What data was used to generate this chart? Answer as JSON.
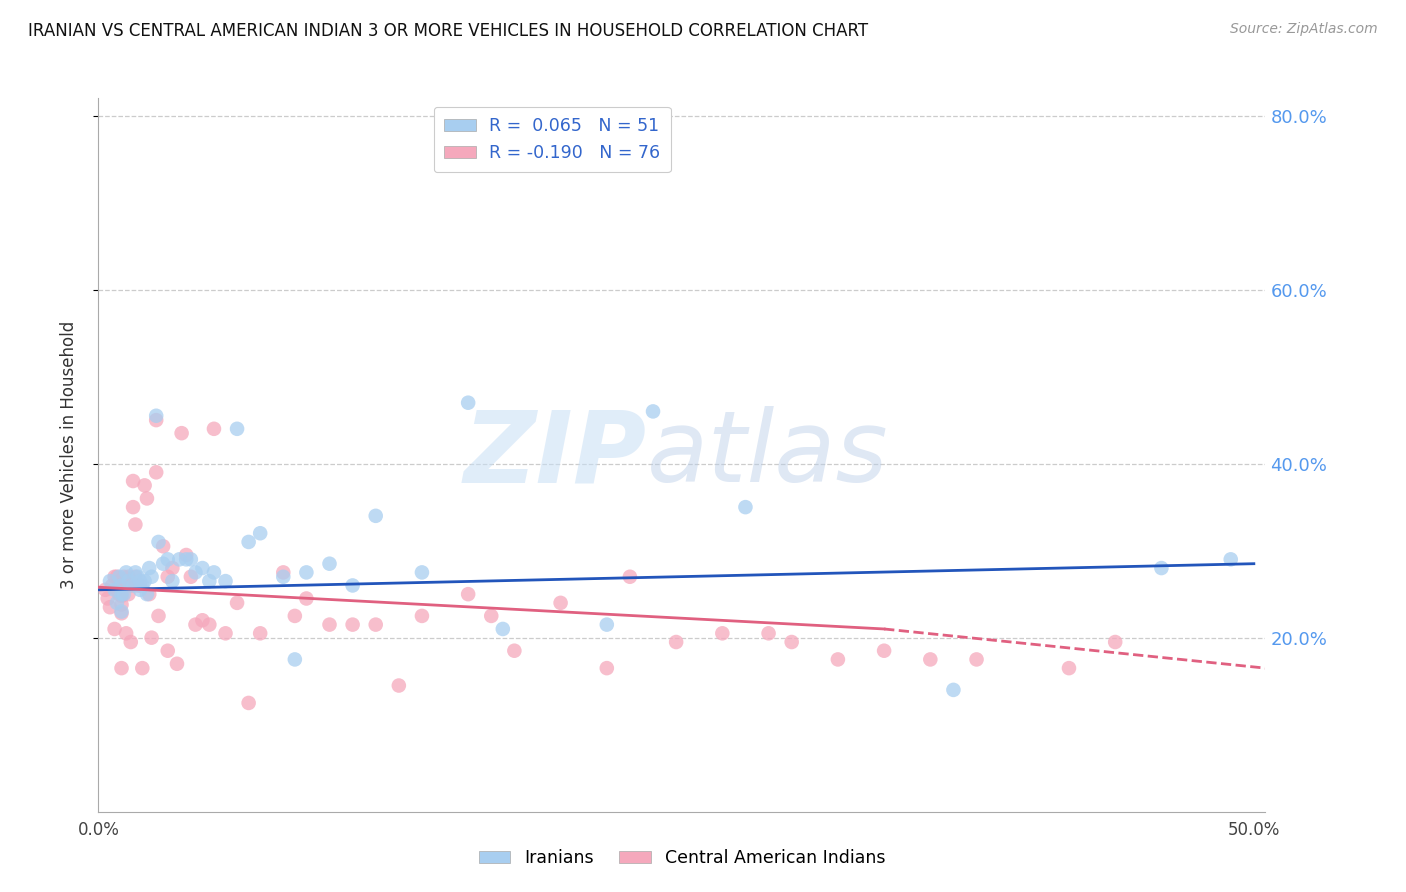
{
  "title": "IRANIAN VS CENTRAL AMERICAN INDIAN 3 OR MORE VEHICLES IN HOUSEHOLD CORRELATION CHART",
  "source": "Source: ZipAtlas.com",
  "ylabel": "3 or more Vehicles in Household",
  "watermark_zip": "ZIP",
  "watermark_atlas": "atlas",
  "r_iranian": 0.065,
  "n_iranian": 51,
  "r_ca_indian": -0.19,
  "n_ca_indian": 76,
  "ylim": [
    0.0,
    0.82
  ],
  "xlim": [
    0.0,
    0.505
  ],
  "yticks": [
    0.2,
    0.4,
    0.6,
    0.8
  ],
  "ytick_labels": [
    "20.0%",
    "40.0%",
    "60.0%",
    "80.0%"
  ],
  "xticks": [
    0.0,
    0.1,
    0.2,
    0.3,
    0.4,
    0.5
  ],
  "xtick_labels": [
    "0.0%",
    "",
    "",
    "",
    "",
    "50.0%"
  ],
  "color_iranian": "#a8cef0",
  "color_ca_indian": "#f5a8bc",
  "color_trend_iranian": "#2255bb",
  "color_trend_ca_indian": "#e06080",
  "iranian_x": [
    0.005,
    0.007,
    0.008,
    0.009,
    0.01,
    0.01,
    0.01,
    0.011,
    0.012,
    0.013,
    0.015,
    0.016,
    0.017,
    0.018,
    0.018,
    0.019,
    0.02,
    0.021,
    0.022,
    0.023,
    0.025,
    0.026,
    0.028,
    0.03,
    0.032,
    0.035,
    0.038,
    0.04,
    0.042,
    0.045,
    0.048,
    0.05,
    0.055,
    0.06,
    0.065,
    0.07,
    0.08,
    0.085,
    0.09,
    0.1,
    0.11,
    0.12,
    0.14,
    0.16,
    0.175,
    0.22,
    0.24,
    0.28,
    0.37,
    0.46,
    0.49
  ],
  "iranian_y": [
    0.265,
    0.255,
    0.24,
    0.27,
    0.26,
    0.25,
    0.23,
    0.25,
    0.275,
    0.265,
    0.26,
    0.275,
    0.27,
    0.265,
    0.255,
    0.26,
    0.265,
    0.25,
    0.28,
    0.27,
    0.455,
    0.31,
    0.285,
    0.29,
    0.265,
    0.29,
    0.29,
    0.29,
    0.275,
    0.28,
    0.265,
    0.275,
    0.265,
    0.44,
    0.31,
    0.32,
    0.27,
    0.175,
    0.275,
    0.285,
    0.26,
    0.34,
    0.275,
    0.47,
    0.21,
    0.215,
    0.46,
    0.35,
    0.14,
    0.28,
    0.29
  ],
  "ca_indian_x": [
    0.003,
    0.004,
    0.005,
    0.006,
    0.007,
    0.007,
    0.008,
    0.008,
    0.009,
    0.009,
    0.01,
    0.01,
    0.01,
    0.01,
    0.01,
    0.011,
    0.012,
    0.012,
    0.013,
    0.013,
    0.014,
    0.014,
    0.015,
    0.015,
    0.016,
    0.016,
    0.017,
    0.018,
    0.019,
    0.02,
    0.021,
    0.022,
    0.023,
    0.025,
    0.025,
    0.026,
    0.028,
    0.03,
    0.03,
    0.032,
    0.034,
    0.036,
    0.038,
    0.04,
    0.042,
    0.045,
    0.048,
    0.05,
    0.055,
    0.06,
    0.065,
    0.07,
    0.08,
    0.085,
    0.09,
    0.1,
    0.11,
    0.12,
    0.13,
    0.14,
    0.16,
    0.17,
    0.18,
    0.2,
    0.22,
    0.23,
    0.25,
    0.27,
    0.29,
    0.3,
    0.32,
    0.34,
    0.36,
    0.38,
    0.42,
    0.44
  ],
  "ca_indian_y": [
    0.255,
    0.245,
    0.235,
    0.26,
    0.27,
    0.21,
    0.27,
    0.255,
    0.265,
    0.25,
    0.26,
    0.248,
    0.238,
    0.228,
    0.165,
    0.27,
    0.265,
    0.205,
    0.27,
    0.25,
    0.26,
    0.195,
    0.38,
    0.35,
    0.33,
    0.27,
    0.26,
    0.26,
    0.165,
    0.375,
    0.36,
    0.25,
    0.2,
    0.45,
    0.39,
    0.225,
    0.305,
    0.27,
    0.185,
    0.28,
    0.17,
    0.435,
    0.295,
    0.27,
    0.215,
    0.22,
    0.215,
    0.44,
    0.205,
    0.24,
    0.125,
    0.205,
    0.275,
    0.225,
    0.245,
    0.215,
    0.215,
    0.215,
    0.145,
    0.225,
    0.25,
    0.225,
    0.185,
    0.24,
    0.165,
    0.27,
    0.195,
    0.205,
    0.205,
    0.195,
    0.175,
    0.185,
    0.175,
    0.175,
    0.165,
    0.195
  ],
  "trend_ir_x0": 0.0,
  "trend_ir_x1": 0.5,
  "trend_ir_y0": 0.255,
  "trend_ir_y1": 0.285,
  "trend_ca_solid_x0": 0.0,
  "trend_ca_solid_x1": 0.34,
  "trend_ca_y0": 0.258,
  "trend_ca_y1": 0.21,
  "trend_ca_dash_x0": 0.34,
  "trend_ca_dash_x1": 0.505,
  "trend_ca_dash_y0": 0.21,
  "trend_ca_dash_y1": 0.165
}
